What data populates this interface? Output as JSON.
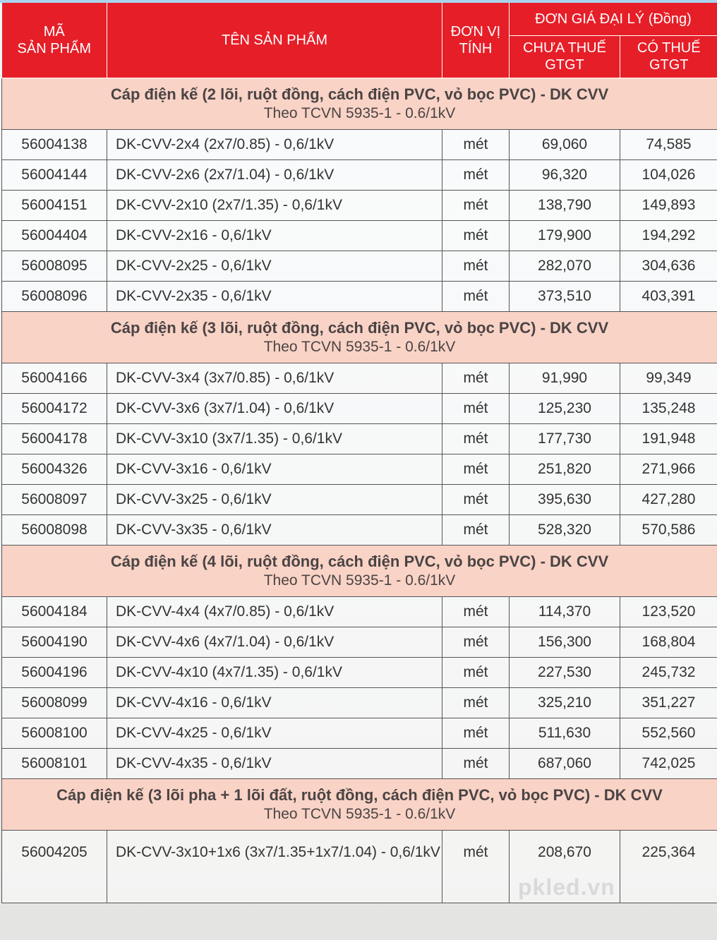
{
  "header": {
    "code": "MÃ SẢN PHẨM",
    "code_l1": "MÃ",
    "code_l2": "SẢN PHẨM",
    "name": "TÊN SẢN PHẨM",
    "unit_l1": "ĐƠN VỊ",
    "unit_l2": "TÍNH",
    "price_group": "ĐƠN GIÁ ĐẠI LÝ (Đồng)",
    "pre_tax_l1": "CHƯA THUẾ",
    "pre_tax_l2": "GTGT",
    "with_tax_l1": "CÓ THUẾ",
    "with_tax_l2": "GTGT"
  },
  "colors": {
    "header_bg": "#e61e28",
    "section_bg": "#f9d3c6"
  },
  "watermark": "pkled.vn",
  "sections": [
    {
      "title": "Cáp điện kế (2 lõi, ruột đồng, cách điện PVC, vỏ bọc PVC) - DK CVV",
      "subtitle": "Theo TCVN 5935-1 - 0.6/1kV",
      "rows": [
        {
          "code": "56004138",
          "name": "DK-CVV-2x4 (2x7/0.85) - 0,6/1kV",
          "unit": "mét",
          "pre_tax": "69,060",
          "with_tax": "74,585"
        },
        {
          "code": "56004144",
          "name": "DK-CVV-2x6 (2x7/1.04) - 0,6/1kV",
          "unit": "mét",
          "pre_tax": "96,320",
          "with_tax": "104,026"
        },
        {
          "code": "56004151",
          "name": "DK-CVV-2x10 (2x7/1.35) - 0,6/1kV",
          "unit": "mét",
          "pre_tax": "138,790",
          "with_tax": "149,893"
        },
        {
          "code": "56004404",
          "name": "DK-CVV-2x16 - 0,6/1kV",
          "unit": "mét",
          "pre_tax": "179,900",
          "with_tax": "194,292"
        },
        {
          "code": "56008095",
          "name": "DK-CVV-2x25 - 0,6/1kV",
          "unit": "mét",
          "pre_tax": "282,070",
          "with_tax": "304,636"
        },
        {
          "code": "56008096",
          "name": "DK-CVV-2x35 - 0,6/1kV",
          "unit": "mét",
          "pre_tax": "373,510",
          "with_tax": "403,391"
        }
      ]
    },
    {
      "title": "Cáp điện kế (3 lõi, ruột đồng, cách điện PVC, vỏ bọc PVC) - DK CVV",
      "subtitle": "Theo TCVN 5935-1 - 0.6/1kV",
      "rows": [
        {
          "code": "56004166",
          "name": "DK-CVV-3x4 (3x7/0.85) - 0,6/1kV",
          "unit": "mét",
          "pre_tax": "91,990",
          "with_tax": "99,349"
        },
        {
          "code": "56004172",
          "name": "DK-CVV-3x6 (3x7/1.04) - 0,6/1kV",
          "unit": "mét",
          "pre_tax": "125,230",
          "with_tax": "135,248"
        },
        {
          "code": "56004178",
          "name": "DK-CVV-3x10 (3x7/1.35) - 0,6/1kV",
          "unit": "mét",
          "pre_tax": "177,730",
          "with_tax": "191,948"
        },
        {
          "code": "56004326",
          "name": "DK-CVV-3x16 - 0,6/1kV",
          "unit": "mét",
          "pre_tax": "251,820",
          "with_tax": "271,966"
        },
        {
          "code": "56008097",
          "name": "DK-CVV-3x25 - 0,6/1kV",
          "unit": "mét",
          "pre_tax": "395,630",
          "with_tax": "427,280"
        },
        {
          "code": "56008098",
          "name": "DK-CVV-3x35 - 0,6/1kV",
          "unit": "mét",
          "pre_tax": "528,320",
          "with_tax": "570,586"
        }
      ]
    },
    {
      "title": "Cáp điện kế (4 lõi, ruột đồng, cách điện PVC, vỏ bọc PVC) - DK CVV",
      "subtitle": "Theo TCVN 5935-1 - 0.6/1kV",
      "rows": [
        {
          "code": "56004184",
          "name": "DK-CVV-4x4 (4x7/0.85) - 0,6/1kV",
          "unit": "mét",
          "pre_tax": "114,370",
          "with_tax": "123,520"
        },
        {
          "code": "56004190",
          "name": "DK-CVV-4x6 (4x7/1.04) - 0,6/1kV",
          "unit": "mét",
          "pre_tax": "156,300",
          "with_tax": "168,804"
        },
        {
          "code": "56004196",
          "name": "DK-CVV-4x10 (4x7/1.35) - 0,6/1kV",
          "unit": "mét",
          "pre_tax": "227,530",
          "with_tax": "245,732"
        },
        {
          "code": "56008099",
          "name": "DK-CVV-4x16 - 0,6/1kV",
          "unit": "mét",
          "pre_tax": "325,210",
          "with_tax": "351,227"
        },
        {
          "code": "56008100",
          "name": "DK-CVV-4x25 - 0,6/1kV",
          "unit": "mét",
          "pre_tax": "511,630",
          "with_tax": "552,560"
        },
        {
          "code": "56008101",
          "name": "DK-CVV-4x35 - 0,6/1kV",
          "unit": "mét",
          "pre_tax": "687,060",
          "with_tax": "742,025"
        }
      ]
    },
    {
      "title": "Cáp điện kế (3 lõi pha + 1 lõi đất, ruột đồng, cách điện PVC, vỏ bọc PVC) - DK CVV",
      "subtitle": "Theo TCVN 5935-1 - 0.6/1kV",
      "rows": [
        {
          "code": "56004205",
          "name": "DK-CVV-3x10+1x6 (3x7/1.35+1x7/1.04) - 0,6/1kV",
          "unit": "mét",
          "pre_tax": "208,670",
          "with_tax": "225,364"
        }
      ]
    }
  ]
}
